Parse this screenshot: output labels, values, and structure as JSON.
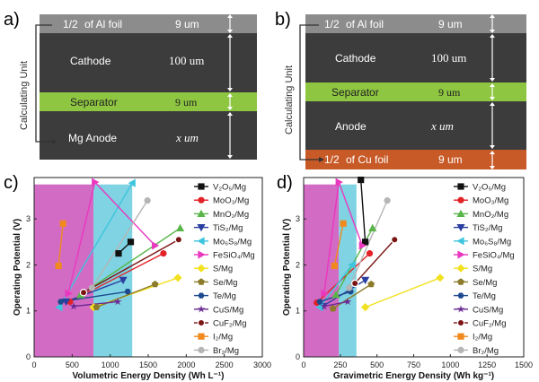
{
  "panels": {
    "a": {
      "letter": "a)",
      "unit_label": "Calculating Unit",
      "layers": [
        {
          "name": "half_al",
          "label_frac": "1/2",
          "label": "of Al foil",
          "thickness": "9 um",
          "color": "#8c8c8c"
        },
        {
          "name": "cathode",
          "label": "Cathode",
          "thickness": "100 um",
          "color": "#3c3c3c"
        },
        {
          "name": "separator",
          "label": "Separator",
          "thickness": "9 um",
          "color": "#8ec641"
        },
        {
          "name": "anode",
          "label": "Mg  Anode",
          "thickness": "x um",
          "color": "#3c3c3c"
        }
      ]
    },
    "b": {
      "letter": "b)",
      "unit_label": "Calculating Unit",
      "layers": [
        {
          "name": "half_al",
          "label_frac": "1/2",
          "label": "of Al foil",
          "thickness": "9 um",
          "color": "#8c8c8c"
        },
        {
          "name": "cathode",
          "label": "Cathode",
          "thickness": "100 um",
          "color": "#3c3c3c"
        },
        {
          "name": "separator",
          "label": "Separator",
          "thickness": "9 um",
          "color": "#8ec641"
        },
        {
          "name": "anode",
          "label": "Anode",
          "thickness": "x um",
          "color": "#3c3c3c"
        },
        {
          "name": "half_cu",
          "label_frac": "1/2",
          "label": "of Cu foil",
          "thickness": "9 um",
          "color": "#c85a28"
        }
      ]
    },
    "c": {
      "letter": "c)"
    },
    "d": {
      "letter": "d)"
    }
  },
  "legend": [
    "V₂O₅/Mg",
    "MoO₃/Mg",
    "MnO₂/Mg",
    "TiS₂/Mg",
    "Mo₆S₈/Mg",
    "FeSiO₄/Mg",
    "S/Mg",
    "Se/Mg",
    "Te/Mg",
    "CuS/Mg",
    "CuF₂/Mg",
    "I₂/Mg",
    "Br₂/Mg"
  ],
  "colors": {
    "V2O5": "#111111",
    "MoO3": "#e32228",
    "MnO2": "#59b549",
    "TiS2": "#2a3ea0",
    "Mo6S8": "#3dc5de",
    "FeSiO4": "#ea37c0",
    "S": "#f2e121",
    "Se": "#8c7b2a",
    "Te": "#1d4a8f",
    "CuS": "#6a2a92",
    "CuF2": "#7b1414",
    "I2": "#f08a1e",
    "Br2": "#b5b5b5",
    "pink_region": "#d26bc4",
    "cyan_region": "#7fd3e2"
  },
  "chart_data": [
    {
      "type": "scatter",
      "panel": "c",
      "xlabel": "Volumetric Energy Density (Wh L⁻¹)",
      "ylabel": "Operating Potential (V)",
      "xlim": [
        0,
        3000
      ],
      "ylim": [
        0,
        3.9
      ],
      "xticks": [
        0,
        500,
        1000,
        1500,
        2000,
        2500,
        3000
      ],
      "yticks": [
        0,
        1,
        2,
        3
      ],
      "regions": [
        {
          "name": "pink",
          "x": [
            0,
            780
          ],
          "y_top": 3.75
        },
        {
          "name": "cyan",
          "x": [
            780,
            1290
          ],
          "y_top": 3.75
        }
      ],
      "series": [
        {
          "name": "V₂O₅/Mg",
          "marker": "square",
          "points": [
            [
              1270,
              2.5
            ],
            [
              1110,
              2.25
            ]
          ]
        },
        {
          "name": "MoO₃/Mg",
          "marker": "circle",
          "points": [
            [
              1700,
              2.25
            ],
            [
              470,
              1.2
            ]
          ]
        },
        {
          "name": "MnO₂/Mg",
          "marker": "triangle-up",
          "points": [
            [
              1920,
              2.8
            ],
            [
              610,
              1.35
            ]
          ]
        },
        {
          "name": "TiS₂/Mg",
          "marker": "triangle-down",
          "points": [
            [
              1170,
              1.67
            ],
            [
              420,
              1.2
            ]
          ]
        },
        {
          "name": "Mo₆S₈/Mg",
          "marker": "triangle-left",
          "points": [
            [
              330,
              1.08
            ],
            [
              1290,
              3.78
            ]
          ]
        },
        {
          "name": "FeSiO₄/Mg",
          "marker": "triangle-right",
          "points": [
            [
              1590,
              2.42
            ],
            [
              800,
              3.8
            ],
            [
              450,
              1.38
            ]
          ]
        },
        {
          "name": "S/Mg",
          "marker": "diamond",
          "points": [
            [
              1890,
              1.72
            ],
            [
              780,
              1.08
            ]
          ]
        },
        {
          "name": "Se/Mg",
          "marker": "pentagon",
          "points": [
            [
              1590,
              1.58
            ],
            [
              820,
              1.08
            ]
          ]
        },
        {
          "name": "Te/Mg",
          "marker": "hexagon",
          "points": [
            [
              1230,
              1.42
            ],
            [
              350,
              1.2
            ]
          ]
        },
        {
          "name": "CuS/Mg",
          "marker": "star",
          "points": [
            [
              1100,
              1.2
            ],
            [
              520,
              1.1
            ]
          ]
        },
        {
          "name": "CuF₂/Mg",
          "marker": "circle-open",
          "points": [
            [
              1900,
              2.55
            ],
            [
              650,
              1.4
            ]
          ]
        },
        {
          "name": "I₂/Mg",
          "marker": "square",
          "points": [
            [
              380,
              2.9
            ],
            [
              320,
              1.98
            ]
          ]
        },
        {
          "name": "Br₂/Mg",
          "marker": "circle",
          "points": [
            [
              1490,
              3.4
            ],
            [
              760,
              1.5
            ]
          ]
        }
      ]
    },
    {
      "type": "scatter",
      "panel": "d",
      "xlabel": "Gravimetric Energy Density (Wh kg⁻¹)",
      "ylabel": "Operating Potential (V)",
      "xlim": [
        0,
        1500
      ],
      "ylim": [
        0,
        3.9
      ],
      "xticks": [
        0,
        250,
        500,
        750,
        1000,
        1250,
        1500
      ],
      "yticks": [
        0,
        1,
        2,
        3
      ],
      "regions": [
        {
          "name": "pink",
          "x": [
            0,
            240
          ],
          "y_top": 3.75
        },
        {
          "name": "cyan",
          "x": [
            240,
            360
          ],
          "y_top": 3.75
        }
      ],
      "series": [
        {
          "name": "V₂O₅/Mg",
          "marker": "square",
          "points": [
            [
              420,
              2.5
            ],
            [
              390,
              3.85
            ]
          ]
        },
        {
          "name": "MoO₃/Mg",
          "marker": "circle",
          "points": [
            [
              450,
              2.25
            ],
            [
              90,
              1.18
            ]
          ]
        },
        {
          "name": "MnO₂/Mg",
          "marker": "triangle-up",
          "points": [
            [
              470,
              2.8
            ],
            [
              220,
              1.35
            ]
          ]
        },
        {
          "name": "TiS₂/Mg",
          "marker": "triangle-down",
          "points": [
            [
              420,
              1.67
            ],
            [
              130,
              1.1
            ]
          ]
        },
        {
          "name": "Mo₆S₈/Mg",
          "marker": "triangle-left",
          "points": [
            [
              110,
              1.08
            ],
            [
              330,
              2.0
            ]
          ]
        },
        {
          "name": "FeSiO₄/Mg",
          "marker": "triangle-right",
          "points": [
            [
              400,
              2.42
            ],
            [
              240,
              3.8
            ],
            [
              140,
              1.38
            ]
          ]
        },
        {
          "name": "S/Mg",
          "marker": "diamond",
          "points": [
            [
              930,
              1.72
            ],
            [
              420,
              1.08
            ]
          ]
        },
        {
          "name": "Se/Mg",
          "marker": "pentagon",
          "points": [
            [
              460,
              1.58
            ],
            [
              200,
              1.05
            ]
          ]
        },
        {
          "name": "Te/Mg",
          "marker": "hexagon",
          "points": [
            [
              320,
              1.42
            ],
            [
              110,
              1.2
            ]
          ]
        },
        {
          "name": "CuS/Mg",
          "marker": "star",
          "points": [
            [
              300,
              1.2
            ],
            [
              140,
              1.1
            ]
          ]
        },
        {
          "name": "CuF₂/Mg",
          "marker": "circle-open",
          "points": [
            [
              620,
              2.55
            ],
            [
              350,
              1.6
            ]
          ]
        },
        {
          "name": "I₂/Mg",
          "marker": "square",
          "points": [
            [
              270,
              2.9
            ],
            [
              210,
              1.98
            ]
          ]
        },
        {
          "name": "Br₂/Mg",
          "marker": "circle",
          "points": [
            [
              570,
              3.4
            ],
            [
              310,
              1.5
            ]
          ]
        }
      ]
    }
  ]
}
